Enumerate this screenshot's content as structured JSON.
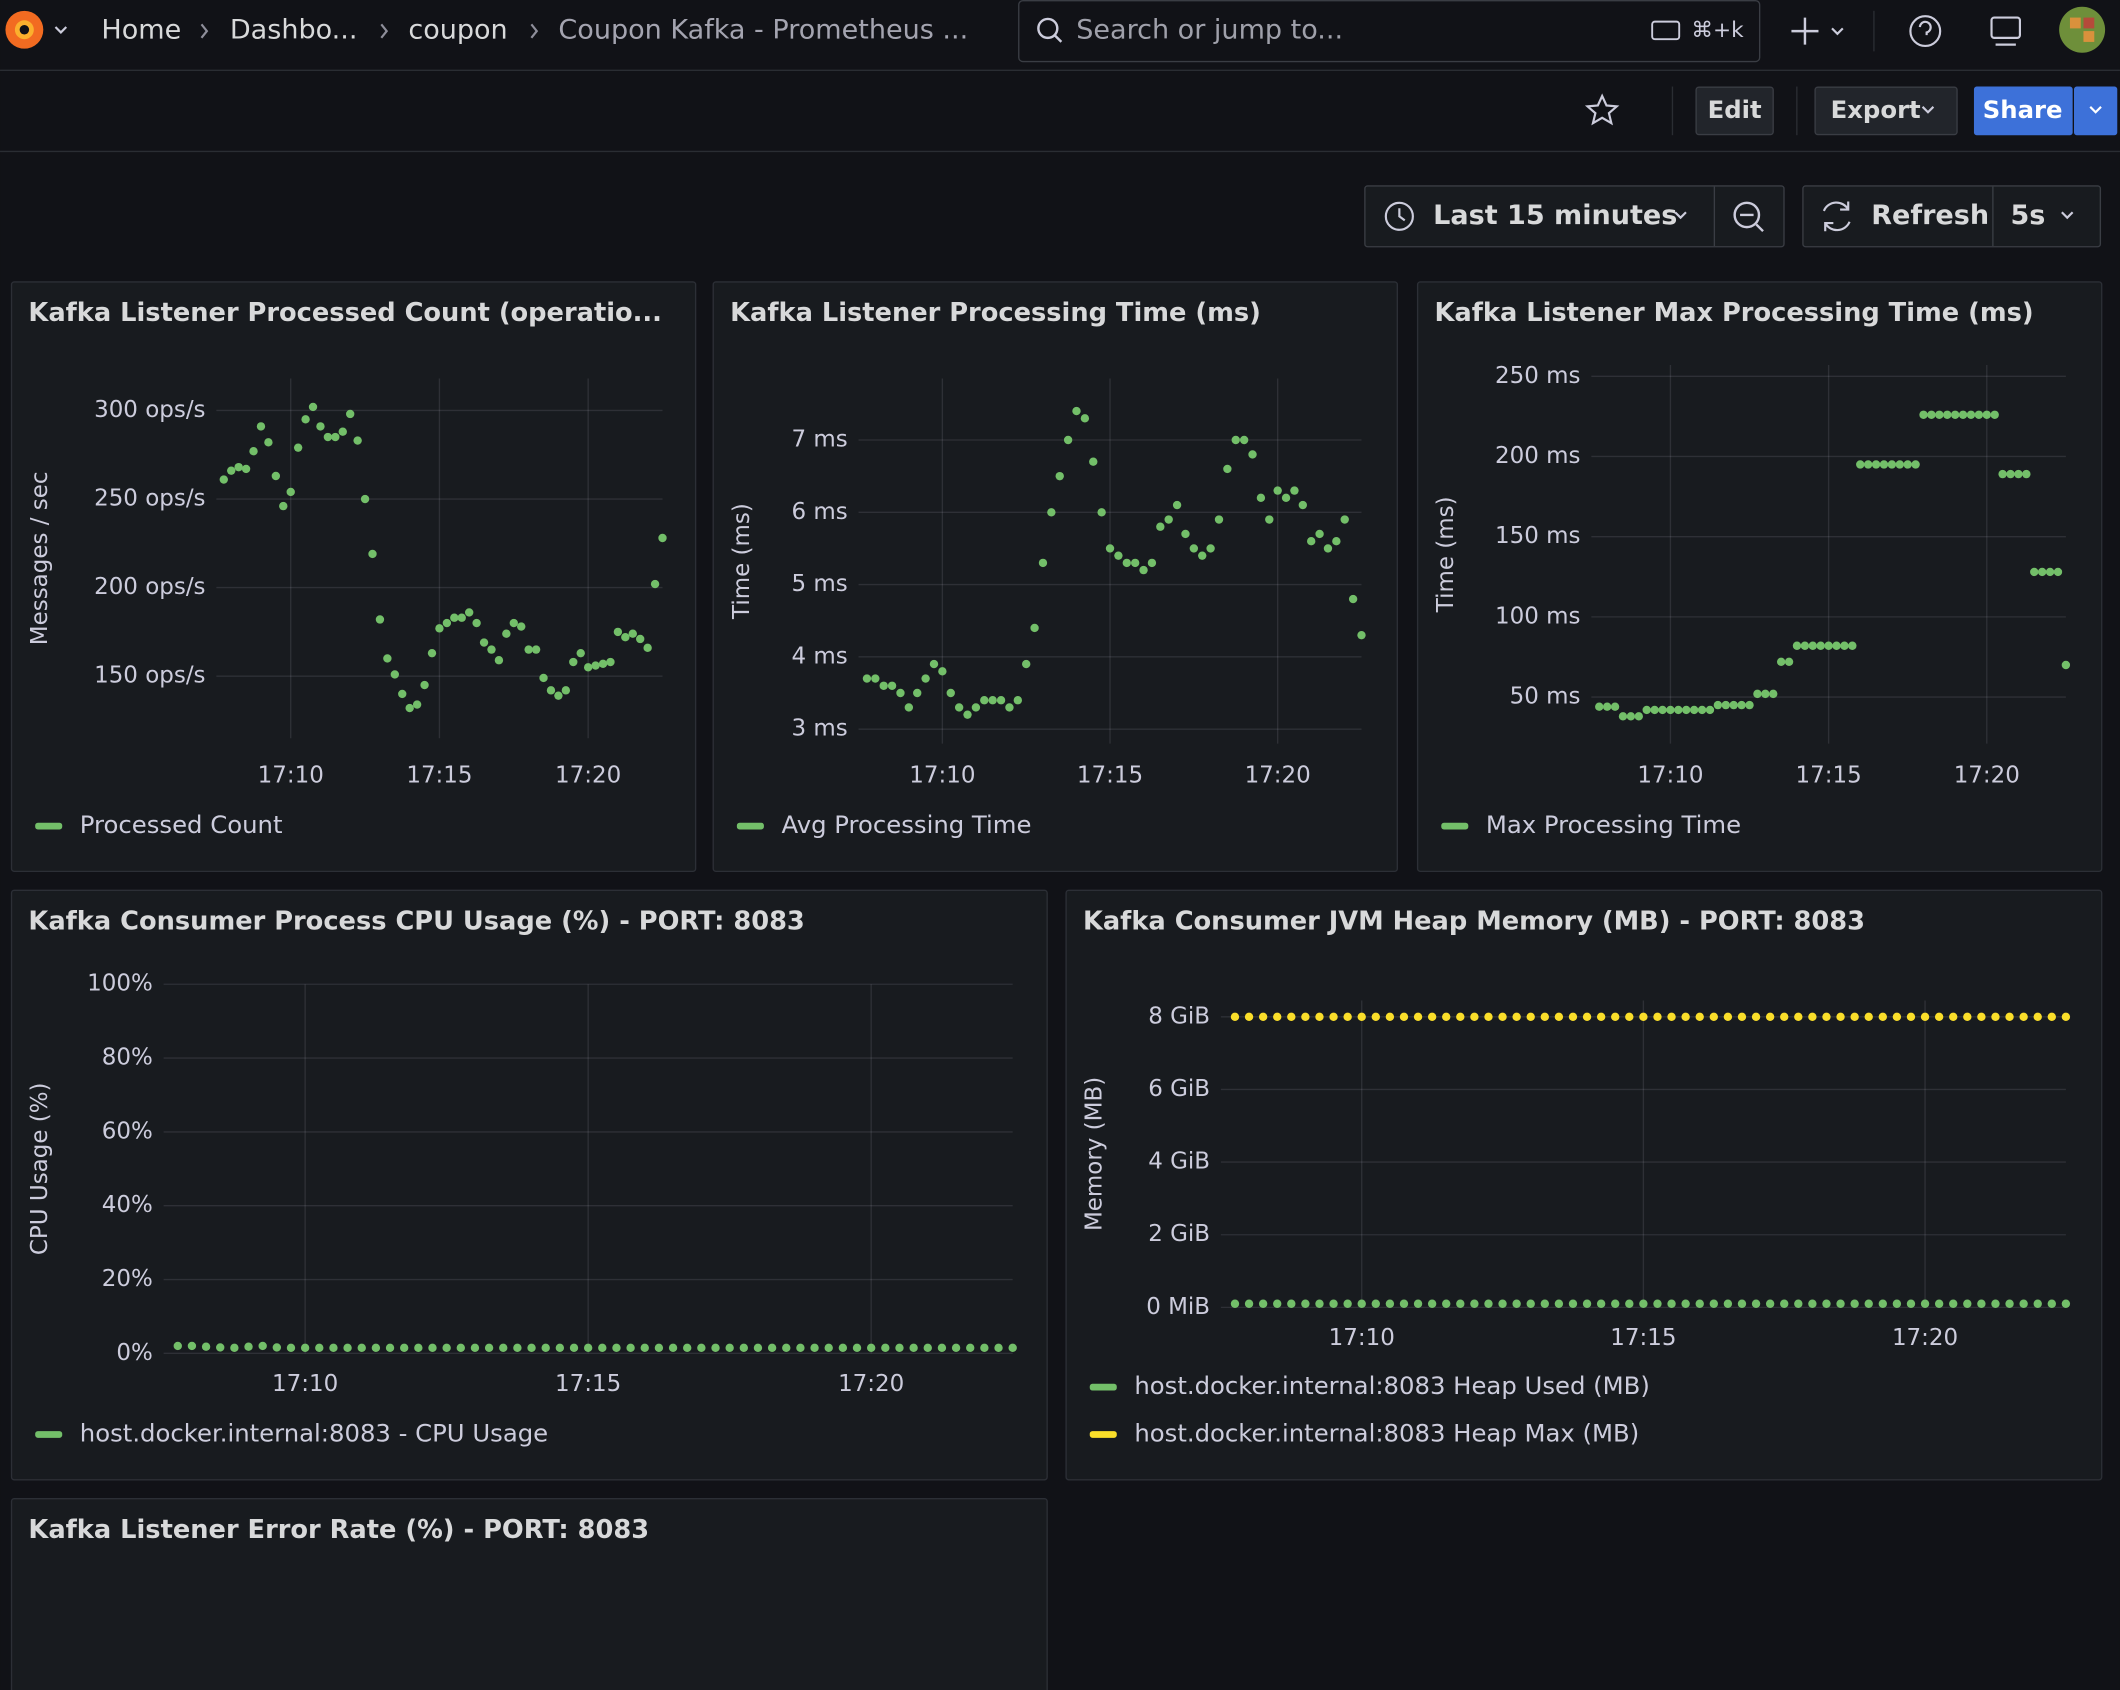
{
  "header": {
    "breadcrumbs": [
      "Home",
      "Dashbo...",
      "coupon",
      "Coupon Kafka - Prometheus ..."
    ],
    "search": {
      "placeholder": "Search or jump to...",
      "shortcut": "⌘+k"
    }
  },
  "toolbar": {
    "edit": "Edit",
    "export": "Export",
    "share": "Share"
  },
  "time_picker": {
    "range": "Last 15 minutes",
    "refresh": "Refresh",
    "interval": "5s"
  },
  "panels": [
    {
      "chart_data": {
        "type": "scatter",
        "title": "Kafka Listener Processed Count (operatio...",
        "y_label": "Messages / sec",
        "x": [
          7.75,
          8,
          8.25,
          8.5,
          8.75,
          9,
          9.25,
          9.5,
          9.75,
          10,
          10.25,
          10.5,
          10.75,
          11,
          11.25,
          11.5,
          11.75,
          12,
          12.25,
          12.5,
          12.75,
          13,
          13.25,
          13.5,
          13.75,
          14,
          14.25,
          14.5,
          14.75,
          15,
          15.25,
          15.5,
          15.75,
          16,
          16.25,
          16.5,
          16.75,
          17,
          17.25,
          17.5,
          17.75,
          18,
          18.25,
          18.5,
          18.75,
          19,
          19.25,
          19.5,
          19.75,
          20,
          20.25,
          20.5,
          20.75,
          21,
          21.25,
          21.5,
          21.75,
          22,
          22.25,
          22.5
        ],
        "xlim": [
          7.5,
          22.5
        ],
        "xticks": [
          {
            "value": 10,
            "label": "17:10"
          },
          {
            "value": 15,
            "label": "17:15"
          },
          {
            "value": 20,
            "label": "17:20"
          }
        ],
        "ylim": [
          115,
          318
        ],
        "yticks": [
          {
            "value": 150,
            "label": "150 ops/s"
          },
          {
            "value": 200,
            "label": "200 ops/s"
          },
          {
            "value": 250,
            "label": "250 ops/s"
          },
          {
            "value": 300,
            "label": "300 ops/s"
          }
        ],
        "grid": true,
        "legend": "bottom",
        "series": [
          {
            "name": "Processed Count",
            "color": "#73bf69",
            "values": [
              261,
              266,
              268,
              267,
              277,
              291,
              282,
              263,
              246,
              254,
              279,
              295,
              302,
              291,
              285,
              285,
              288,
              298,
              283,
              250,
              219,
              182,
              160,
              151,
              140,
              132,
              134,
              145,
              163,
              177,
              180,
              183,
              183,
              186,
              180,
              169,
              165,
              159,
              174,
              180,
              178,
              165,
              165,
              149,
              142,
              139,
              142,
              158,
              163,
              155,
              156,
              157,
              158,
              175,
              172,
              174,
              171,
              166,
              202,
              228
            ]
          }
        ]
      }
    },
    {
      "chart_data": {
        "type": "scatter",
        "title": "Kafka Listener Processing Time (ms)",
        "y_label": "Time (ms)",
        "x": [
          7.75,
          8,
          8.25,
          8.5,
          8.75,
          9,
          9.25,
          9.5,
          9.75,
          10,
          10.25,
          10.5,
          10.75,
          11,
          11.25,
          11.5,
          11.75,
          12,
          12.25,
          12.5,
          12.75,
          13,
          13.25,
          13.5,
          13.75,
          14,
          14.25,
          14.5,
          14.75,
          15,
          15.25,
          15.5,
          15.75,
          16,
          16.25,
          16.5,
          16.75,
          17,
          17.25,
          17.5,
          17.75,
          18,
          18.25,
          18.5,
          18.75,
          19,
          19.25,
          19.5,
          19.75,
          20,
          20.25,
          20.5,
          20.75,
          21,
          21.25,
          21.5,
          21.75,
          22,
          22.25,
          22.5
        ],
        "xlim": [
          7.5,
          22.5
        ],
        "xticks": [
          {
            "value": 10,
            "label": "17:10"
          },
          {
            "value": 15,
            "label": "17:15"
          },
          {
            "value": 20,
            "label": "17:20"
          }
        ],
        "ylim": [
          2.8,
          7.85
        ],
        "yticks": [
          {
            "value": 3,
            "label": "3 ms"
          },
          {
            "value": 4,
            "label": "4 ms"
          },
          {
            "value": 5,
            "label": "5 ms"
          },
          {
            "value": 6,
            "label": "6 ms"
          },
          {
            "value": 7,
            "label": "7 ms"
          }
        ],
        "grid": true,
        "legend": "bottom",
        "series": [
          {
            "name": "Avg Processing Time",
            "color": "#73bf69",
            "values": [
              3.7,
              3.7,
              3.6,
              3.6,
              3.5,
              3.3,
              3.5,
              3.7,
              3.9,
              3.8,
              3.5,
              3.3,
              3.2,
              3.3,
              3.4,
              3.4,
              3.4,
              3.3,
              3.4,
              3.9,
              4.4,
              5.3,
              6,
              6.5,
              7,
              7.4,
              7.3,
              6.7,
              6,
              5.5,
              5.4,
              5.3,
              5.3,
              5.2,
              5.3,
              5.8,
              5.9,
              6.1,
              5.7,
              5.5,
              5.4,
              5.5,
              5.9,
              6.6,
              7,
              7,
              6.8,
              6.2,
              5.9,
              6.3,
              6.2,
              6.3,
              6.1,
              5.6,
              5.7,
              5.5,
              5.6,
              5.9,
              4.8,
              4.3
            ]
          }
        ]
      }
    },
    {
      "chart_data": {
        "type": "scatter",
        "title": "Kafka Listener Max Processing Time (ms)",
        "y_label": "Time (ms)",
        "x": [
          7.75,
          8,
          8.25,
          8.5,
          8.75,
          9,
          9.25,
          9.5,
          9.75,
          10,
          10.25,
          10.5,
          10.75,
          11,
          11.25,
          11.5,
          11.75,
          12,
          12.25,
          12.5,
          12.75,
          13,
          13.25,
          13.5,
          13.75,
          14,
          14.25,
          14.5,
          14.75,
          15,
          15.25,
          15.5,
          15.75,
          16,
          16.25,
          16.5,
          16.75,
          17,
          17.25,
          17.5,
          17.75,
          18,
          18.25,
          18.5,
          18.75,
          19,
          19.25,
          19.5,
          19.75,
          20,
          20.25,
          20.5,
          20.75,
          21,
          21.25,
          21.5,
          21.75,
          22,
          22.25,
          22.5
        ],
        "xlim": [
          7.5,
          22.5
        ],
        "xticks": [
          {
            "value": 10,
            "label": "17:10"
          },
          {
            "value": 15,
            "label": "17:15"
          },
          {
            "value": 20,
            "label": "17:20"
          }
        ],
        "ylim": [
          21,
          257
        ],
        "yticks": [
          {
            "value": 50,
            "label": "50 ms"
          },
          {
            "value": 100,
            "label": "100 ms"
          },
          {
            "value": 150,
            "label": "150 ms"
          },
          {
            "value": 200,
            "label": "200 ms"
          },
          {
            "value": 250,
            "label": "250 ms"
          }
        ],
        "grid": true,
        "legend": "bottom",
        "series": [
          {
            "name": "Max Processing Time",
            "color": "#73bf69",
            "values": [
              44,
              44,
              44,
              38,
              38,
              38,
              42,
              42,
              42,
              42,
              42,
              42,
              42,
              42,
              42,
              45,
              45,
              45,
              45,
              45,
              52,
              52,
              52,
              72,
              72,
              82,
              82,
              82,
              82,
              82,
              82,
              82,
              82,
              195,
              195,
              195,
              195,
              195,
              195,
              195,
              195,
              226,
              226,
              226,
              226,
              226,
              226,
              226,
              226,
              226,
              226,
              189,
              189,
              189,
              189,
              128,
              128,
              128,
              128,
              70
            ]
          }
        ]
      }
    },
    {
      "chart_data": {
        "type": "scatter",
        "title": "Kafka Consumer Process CPU Usage (%) - PORT: 8083",
        "y_label": "CPU Usage (%)",
        "x": [
          7.75,
          8,
          8.25,
          8.5,
          8.75,
          9,
          9.25,
          9.5,
          9.75,
          10,
          10.25,
          10.5,
          10.75,
          11,
          11.25,
          11.5,
          11.75,
          12,
          12.25,
          12.5,
          12.75,
          13,
          13.25,
          13.5,
          13.75,
          14,
          14.25,
          14.5,
          14.75,
          15,
          15.25,
          15.5,
          15.75,
          16,
          16.25,
          16.5,
          16.75,
          17,
          17.25,
          17.5,
          17.75,
          18,
          18.25,
          18.5,
          18.75,
          19,
          19.25,
          19.5,
          19.75,
          20,
          20.25,
          20.5,
          20.75,
          21,
          21.25,
          21.5,
          21.75,
          22,
          22.25,
          22.5
        ],
        "xlim": [
          7.5,
          22.5
        ],
        "xticks": [
          {
            "value": 10,
            "label": "17:10"
          },
          {
            "value": 15,
            "label": "17:15"
          },
          {
            "value": 20,
            "label": "17:20"
          }
        ],
        "ylim": [
          0,
          100
        ],
        "yticks": [
          {
            "value": 0,
            "label": "0%"
          },
          {
            "value": 20,
            "label": "20%"
          },
          {
            "value": 40,
            "label": "40%"
          },
          {
            "value": 60,
            "label": "60%"
          },
          {
            "value": 80,
            "label": "80%"
          },
          {
            "value": 100,
            "label": "100%"
          }
        ],
        "grid": true,
        "legend": "bottom",
        "series": [
          {
            "name": "host.docker.internal:8083 - CPU Usage",
            "color": "#73bf69",
            "values": [
              2,
              2,
              1.8,
              1.6,
              1.5,
              1.8,
              2,
              1.6,
              1.5,
              1.5,
              1.5,
              1.5,
              1.5,
              1.5,
              1.5,
              1.5,
              1.5,
              1.5,
              1.5,
              1.5,
              1.5,
              1.5,
              1.5,
              1.5,
              1.5,
              1.5,
              1.5,
              1.5,
              1.5,
              1.5,
              1.5,
              1.5,
              1.5,
              1.5,
              1.5,
              1.5,
              1.5,
              1.5,
              1.5,
              1.5,
              1.5,
              1.5,
              1.5,
              1.5,
              1.5,
              1.5,
              1.5,
              1.5,
              1.5,
              1.5,
              1.5,
              1.5,
              1.5,
              1.5,
              1.5,
              1.5,
              1.5,
              1.5,
              1.5,
              1.5
            ]
          }
        ]
      }
    },
    {
      "chart_data": {
        "type": "scatter",
        "title": "Kafka Consumer JVM Heap Memory (MB) - PORT: 8083",
        "y_label": "Memory (MB)",
        "x": [
          7.75,
          8,
          8.25,
          8.5,
          8.75,
          9,
          9.25,
          9.5,
          9.75,
          10,
          10.25,
          10.5,
          10.75,
          11,
          11.25,
          11.5,
          11.75,
          12,
          12.25,
          12.5,
          12.75,
          13,
          13.25,
          13.5,
          13.75,
          14,
          14.25,
          14.5,
          14.75,
          15,
          15.25,
          15.5,
          15.75,
          16,
          16.25,
          16.5,
          16.75,
          17,
          17.25,
          17.5,
          17.75,
          18,
          18.25,
          18.5,
          18.75,
          19,
          19.25,
          19.5,
          19.75,
          20,
          20.25,
          20.5,
          20.75,
          21,
          21.25,
          21.5,
          21.75,
          22,
          22.25,
          22.5
        ],
        "xlim": [
          7.5,
          22.5
        ],
        "xticks": [
          {
            "value": 10,
            "label": "17:10"
          },
          {
            "value": 15,
            "label": "17:15"
          },
          {
            "value": 20,
            "label": "17:20"
          }
        ],
        "ylim": [
          0,
          8.45
        ],
        "yticks": [
          {
            "value": 0,
            "label": "0 MiB"
          },
          {
            "value": 2,
            "label": "2 GiB"
          },
          {
            "value": 4,
            "label": "4 GiB"
          },
          {
            "value": 6,
            "label": "6 GiB"
          },
          {
            "value": 8,
            "label": "8 GiB"
          }
        ],
        "grid": true,
        "legend": "bottom",
        "series": [
          {
            "name": "host.docker.internal:8083 Heap Used (MB)",
            "color": "#73bf69",
            "values": [
              0.1,
              0.1,
              0.1,
              0.1,
              0.1,
              0.1,
              0.1,
              0.1,
              0.1,
              0.1,
              0.1,
              0.1,
              0.1,
              0.1,
              0.1,
              0.1,
              0.1,
              0.1,
              0.1,
              0.1,
              0.1,
              0.1,
              0.1,
              0.1,
              0.1,
              0.1,
              0.1,
              0.1,
              0.1,
              0.1,
              0.1,
              0.1,
              0.1,
              0.1,
              0.1,
              0.1,
              0.1,
              0.1,
              0.1,
              0.1,
              0.1,
              0.1,
              0.1,
              0.1,
              0.1,
              0.1,
              0.1,
              0.1,
              0.1,
              0.1,
              0.1,
              0.1,
              0.1,
              0.1,
              0.1,
              0.1,
              0.1,
              0.1,
              0.1,
              0.1
            ]
          },
          {
            "name": "host.docker.internal:8083 Heap Max (MB)",
            "color": "#fade2a",
            "values": [
              8,
              8,
              8,
              8,
              8,
              8,
              8,
              8,
              8,
              8,
              8,
              8,
              8,
              8,
              8,
              8,
              8,
              8,
              8,
              8,
              8,
              8,
              8,
              8,
              8,
              8,
              8,
              8,
              8,
              8,
              8,
              8,
              8,
              8,
              8,
              8,
              8,
              8,
              8,
              8,
              8,
              8,
              8,
              8,
              8,
              8,
              8,
              8,
              8,
              8,
              8,
              8,
              8,
              8,
              8,
              8,
              8,
              8,
              8,
              8
            ]
          }
        ]
      }
    },
    {
      "title": "Kafka Listener Error Rate (%) - PORT: 8083"
    }
  ]
}
